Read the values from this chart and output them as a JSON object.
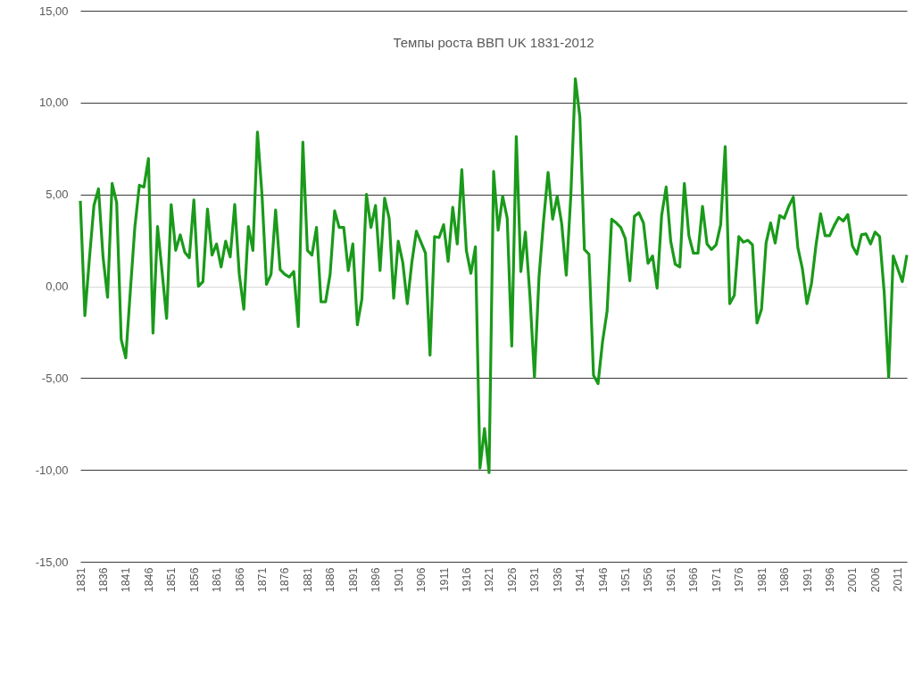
{
  "chart_data": {
    "type": "line",
    "title": "Темпы роста ВВП UK 1831-2012",
    "x": [
      1831,
      1832,
      1833,
      1834,
      1835,
      1836,
      1837,
      1838,
      1839,
      1840,
      1841,
      1842,
      1843,
      1844,
      1845,
      1846,
      1847,
      1848,
      1849,
      1850,
      1851,
      1852,
      1853,
      1854,
      1855,
      1856,
      1857,
      1858,
      1859,
      1860,
      1861,
      1862,
      1863,
      1864,
      1865,
      1866,
      1867,
      1868,
      1869,
      1870,
      1871,
      1872,
      1873,
      1874,
      1875,
      1876,
      1877,
      1878,
      1879,
      1880,
      1881,
      1882,
      1883,
      1884,
      1885,
      1886,
      1887,
      1888,
      1889,
      1890,
      1891,
      1892,
      1893,
      1894,
      1895,
      1896,
      1897,
      1898,
      1899,
      1900,
      1901,
      1902,
      1903,
      1904,
      1905,
      1906,
      1907,
      1908,
      1909,
      1910,
      1911,
      1912,
      1913,
      1914,
      1915,
      1916,
      1917,
      1918,
      1919,
      1920,
      1921,
      1922,
      1923,
      1924,
      1925,
      1926,
      1927,
      1928,
      1929,
      1930,
      1931,
      1932,
      1933,
      1934,
      1935,
      1936,
      1937,
      1938,
      1939,
      1940,
      1941,
      1942,
      1943,
      1944,
      1945,
      1946,
      1947,
      1948,
      1949,
      1950,
      1951,
      1952,
      1953,
      1954,
      1955,
      1956,
      1957,
      1958,
      1959,
      1960,
      1961,
      1962,
      1963,
      1964,
      1965,
      1966,
      1967,
      1968,
      1969,
      1970,
      1971,
      1972,
      1973,
      1974,
      1975,
      1976,
      1977,
      1978,
      1979,
      1980,
      1981,
      1982,
      1983,
      1984,
      1985,
      1986,
      1987,
      1988,
      1989,
      1990,
      1991,
      1992,
      1993,
      1994,
      1995,
      1996,
      1997,
      1998,
      1999,
      2000,
      2001,
      2002,
      2003,
      2004,
      2005,
      2006,
      2007,
      2008,
      2009,
      2010,
      2011,
      2012,
      2013
    ],
    "series": [
      {
        "color": "#1a9a1a",
        "values": [
          4.65,
          -1.6,
          1.5,
          4.4,
          5.3,
          1.6,
          -0.6,
          5.6,
          4.55,
          -2.9,
          -3.9,
          -0.3,
          3.2,
          5.5,
          5.4,
          6.95,
          -2.55,
          3.25,
          0.8,
          -1.75,
          4.45,
          1.95,
          2.8,
          1.85,
          1.55,
          4.7,
          0,
          0.25,
          4.2,
          1.7,
          2.3,
          1.05,
          2.45,
          1.6,
          4.45,
          0.65,
          -1.25,
          3.25,
          1.95,
          8.4,
          5.0,
          0.1,
          0.65,
          4.15,
          0.9,
          0.65,
          0.5,
          0.8,
          -2.2,
          7.85,
          1.95,
          1.7,
          3.2,
          -0.85,
          -0.85,
          0.65,
          4.1,
          3.2,
          3.2,
          0.85,
          2.3,
          -2.1,
          -0.7,
          5.0,
          3.2,
          4.4,
          0.85,
          4.8,
          3.7,
          -0.65,
          2.45,
          1.3,
          -0.95,
          1.3,
          3.0,
          2.4,
          1.8,
          -3.75,
          2.7,
          2.65,
          3.35,
          1.35,
          4.3,
          2.3,
          6.35,
          1.95,
          0.7,
          2.15,
          -9.9,
          -7.75,
          -10.15,
          6.25,
          3.05,
          4.9,
          3.7,
          -3.25,
          8.15,
          0.8,
          2.95,
          -0.5,
          -4.95,
          0.5,
          3.55,
          6.2,
          3.65,
          4.9,
          3.4,
          0.6,
          4.9,
          11.3,
          9.2,
          2.0,
          1.75,
          -4.85,
          -5.3,
          -3.0,
          -1.35,
          3.65,
          3.45,
          3.2,
          2.6,
          0.3,
          3.8,
          4.0,
          3.45,
          1.25,
          1.65,
          -0.1,
          3.85,
          5.4,
          2.45,
          1.2,
          1.05,
          5.6,
          2.75,
          1.8,
          1.8,
          4.35,
          2.3,
          2.0,
          2.25,
          3.35,
          7.6,
          -0.95,
          -0.5,
          2.7,
          2.4,
          2.5,
          2.25,
          -2.0,
          -1.25,
          2.35,
          3.45,
          2.35,
          3.85,
          3.7,
          4.35,
          4.85,
          2.1,
          0.95,
          -0.95,
          0.15,
          2.25,
          3.95,
          2.75,
          2.75,
          3.3,
          3.75,
          3.55,
          3.9,
          2.2,
          1.75,
          2.8,
          2.85,
          2.3,
          2.95,
          2.7,
          -0.3,
          -4.95,
          1.65,
          0.95,
          0.25,
          1.7
        ]
      }
    ],
    "xlim": [
      1831,
      2013
    ],
    "xticks": [
      1831,
      1836,
      1841,
      1846,
      1851,
      1856,
      1861,
      1866,
      1871,
      1876,
      1881,
      1886,
      1891,
      1896,
      1901,
      1906,
      1911,
      1916,
      1921,
      1926,
      1931,
      1936,
      1941,
      1946,
      1951,
      1956,
      1961,
      1966,
      1971,
      1976,
      1981,
      1986,
      1991,
      1996,
      2001,
      2006,
      2011
    ],
    "ylim": [
      -15,
      15
    ],
    "yticks": [
      {
        "value": -15,
        "label": "-15,00"
      },
      {
        "value": -10,
        "label": "-10,00"
      },
      {
        "value": -5,
        "label": "-5,00"
      },
      {
        "value": 0,
        "label": "0,00"
      },
      {
        "value": 5,
        "label": "5,00"
      },
      {
        "value": 10,
        "label": "10,00"
      },
      {
        "value": 15,
        "label": "15,00"
      }
    ],
    "grid": "y",
    "line_style": "solid"
  }
}
